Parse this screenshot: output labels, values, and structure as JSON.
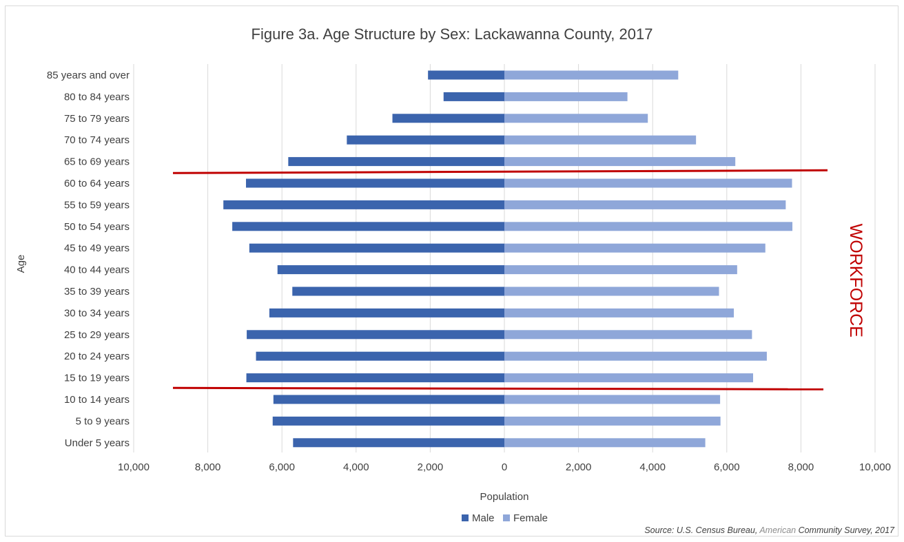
{
  "chart_data": {
    "type": "bar",
    "orientation": "horizontal",
    "layout": "population-pyramid",
    "title": "Figure 3a. Age Structure by Sex: Lackawanna County, 2017",
    "xlabel": "Population",
    "ylabel": "Age",
    "xlim": [
      -10000,
      10000
    ],
    "x_ticks": [
      -10000,
      -8000,
      -6000,
      -4000,
      -2000,
      0,
      2000,
      4000,
      6000,
      8000,
      10000
    ],
    "x_tick_labels": [
      "10,000",
      "8,000",
      "6,000",
      "4,000",
      "2,000",
      "0",
      "2,000",
      "4,000",
      "6,000",
      "8,000",
      "10,000"
    ],
    "grid": true,
    "legend_position": "bottom",
    "categories": [
      "85 years and over",
      "80 to 84 years",
      "75 to 79 years",
      "70 to 74 years",
      "65 to 69 years",
      "60 to 64 years",
      "55 to 59 years",
      "50 to 54 years",
      "45 to 49 years",
      "40 to 44 years",
      "35 to 39 years",
      "30 to 34 years",
      "25 to 29 years",
      "20 to 24 years",
      "15 to 19 years",
      "10 to 14 years",
      "5 to 9 years",
      "Under 5 years"
    ],
    "series": [
      {
        "name": "Male",
        "color": "#3b64ad",
        "values": [
          2060,
          1640,
          3020,
          4250,
          5830,
          6970,
          7580,
          7340,
          6880,
          6120,
          5720,
          6340,
          6950,
          6700,
          6960,
          6230,
          6250,
          5700
        ]
      },
      {
        "name": "Female",
        "color": "#8fa7d9",
        "values": [
          4690,
          3320,
          3870,
          5170,
          6230,
          7760,
          7590,
          7770,
          7040,
          6280,
          5790,
          6190,
          6680,
          7080,
          6710,
          5820,
          5830,
          5420
        ]
      }
    ],
    "annotations": {
      "band_label": "WORKFORCE",
      "band_color": "#c00000",
      "band_top_category": "60 to 64 years",
      "band_bottom_category": "15 to 19 years"
    },
    "source_prefix": "Source: U.S. Census Bureau, ",
    "source_highlight": "American",
    "source_suffix": " Community Survey, 2017"
  }
}
